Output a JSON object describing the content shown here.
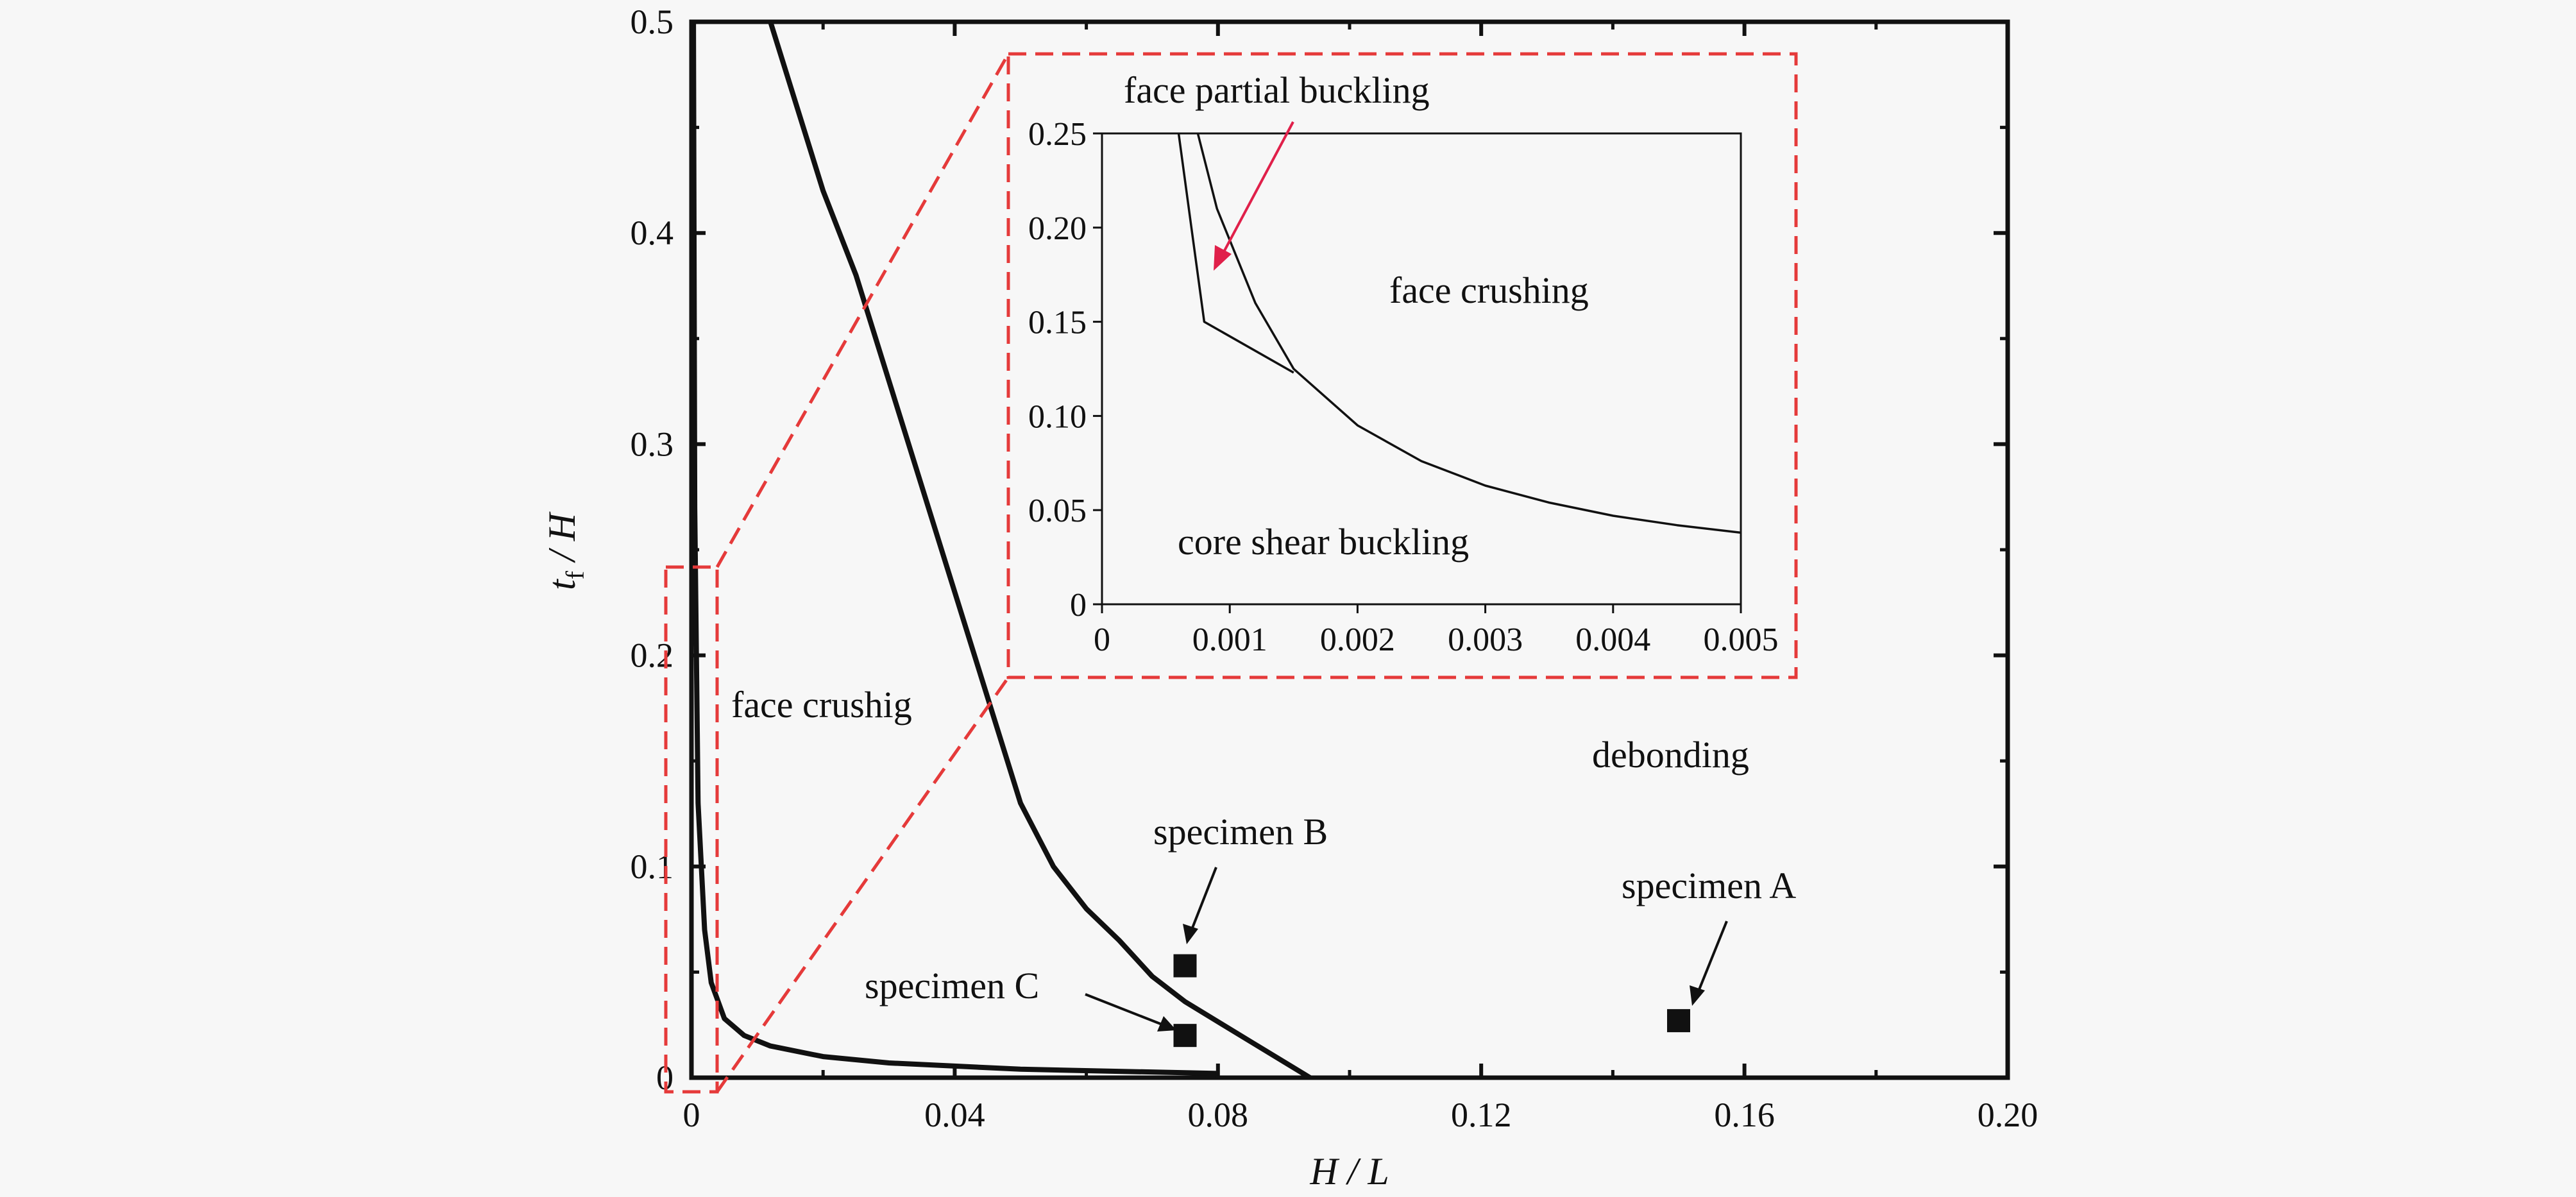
{
  "chart_data": [
    {
      "type": "line",
      "xlabel": "H / L",
      "ylabel": {
        "main": "t",
        "subscript": "f",
        "suffix": " / H"
      },
      "xlim": [
        0,
        0.2
      ],
      "ylim": [
        0,
        0.5
      ],
      "x_ticks": [
        "0",
        "0.04",
        "0.08",
        "0.12",
        "0.16",
        "0.20"
      ],
      "x_tick_values": [
        0,
        0.04,
        0.08,
        0.12,
        0.16,
        0.2
      ],
      "y_ticks": [
        "0",
        "0.1",
        "0.2",
        "0.3",
        "0.4",
        "0.5"
      ],
      "y_tick_values": [
        0,
        0.1,
        0.2,
        0.3,
        0.4,
        0.5
      ],
      "grid": false,
      "series": [
        {
          "values": [
            [
              0.012,
              0.5
            ],
            [
              0.015,
              0.47
            ],
            [
              0.02,
              0.42
            ],
            [
              0.025,
              0.38
            ],
            [
              0.03,
              0.33
            ],
            [
              0.035,
              0.28
            ],
            [
              0.04,
              0.23
            ],
            [
              0.045,
              0.18
            ],
            [
              0.05,
              0.13
            ],
            [
              0.055,
              0.1
            ],
            [
              0.06,
              0.08
            ],
            [
              0.065,
              0.065
            ],
            [
              0.07,
              0.048
            ],
            [
              0.075,
              0.036
            ],
            [
              0.085,
              0.017
            ],
            [
              0.094,
              0
            ]
          ]
        },
        {
          "values": [
            [
              0.0003,
              0.5
            ],
            [
              0.0005,
              0.27
            ],
            [
              0.001,
              0.13
            ],
            [
              0.002,
              0.07
            ],
            [
              0.003,
              0.045
            ],
            [
              0.005,
              0.028
            ],
            [
              0.008,
              0.02
            ],
            [
              0.012,
              0.015
            ],
            [
              0.02,
              0.01
            ],
            [
              0.03,
              0.007
            ],
            [
              0.05,
              0.004
            ],
            [
              0.08,
              0.002
            ]
          ]
        }
      ],
      "points": [
        {
          "label": "specimen A",
          "x": 0.15,
          "y": 0.027
        },
        {
          "label": "specimen B",
          "x": 0.075,
          "y": 0.053
        },
        {
          "label": "specimen C",
          "x": 0.075,
          "y": 0.02
        }
      ],
      "annotations": [
        "face crushig",
        "debonding"
      ],
      "zoom_region": {
        "x": [
          0,
          0.005
        ],
        "y": [
          0,
          0.25
        ]
      }
    },
    {
      "type": "line",
      "role": "inset",
      "xlim": [
        0,
        0.005
      ],
      "ylim": [
        0,
        0.25
      ],
      "x_ticks": [
        "0",
        "0.001",
        "0.002",
        "0.003",
        "0.004",
        "0.005"
      ],
      "x_tick_values": [
        0,
        0.001,
        0.002,
        0.003,
        0.004,
        0.005
      ],
      "y_ticks": [
        "0",
        "0.05",
        "0.10",
        "0.15",
        "0.20",
        "0.25"
      ],
      "y_tick_values": [
        0,
        0.05,
        0.1,
        0.15,
        0.2,
        0.25
      ],
      "series": [
        {
          "values": [
            [
              0.0006,
              0.25
            ],
            [
              0.0007,
              0.2
            ],
            [
              0.0008,
              0.15
            ],
            [
              0.0015,
              0.123
            ]
          ]
        },
        {
          "values": [
            [
              0.00075,
              0.25
            ],
            [
              0.0009,
              0.21
            ],
            [
              0.0012,
              0.16
            ],
            [
              0.0015,
              0.125
            ],
            [
              0.002,
              0.095
            ],
            [
              0.0025,
              0.076
            ],
            [
              0.003,
              0.063
            ],
            [
              0.0035,
              0.054
            ],
            [
              0.004,
              0.047
            ],
            [
              0.0045,
              0.042
            ],
            [
              0.005,
              0.038
            ]
          ]
        }
      ],
      "annotations": [
        "face partial buckling",
        "face crushing",
        "core shear buckling"
      ]
    }
  ]
}
